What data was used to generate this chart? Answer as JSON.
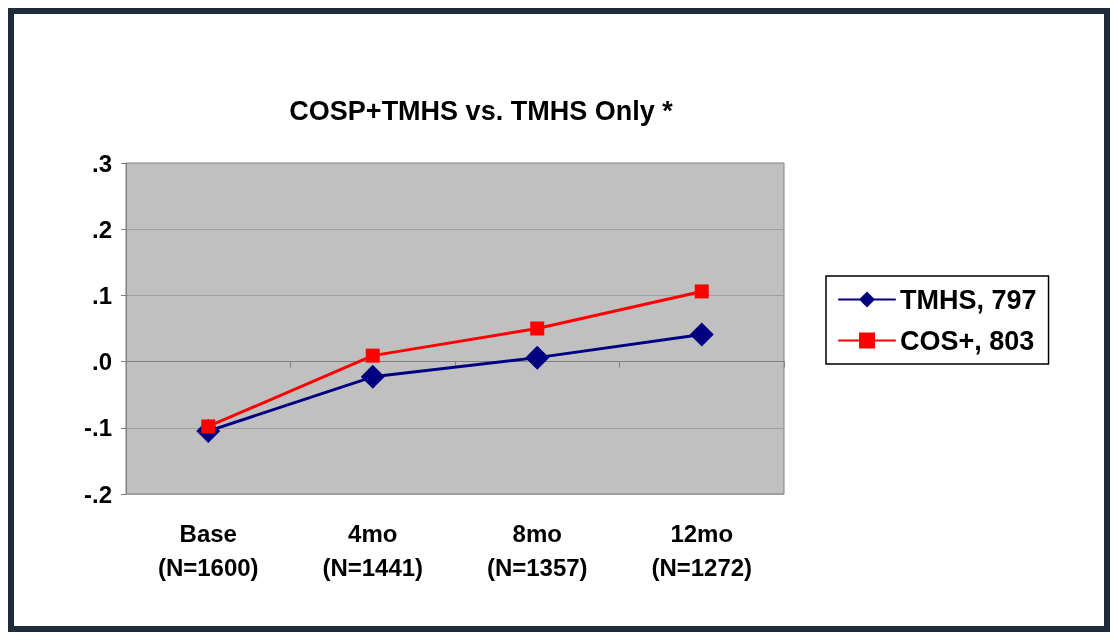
{
  "chart_data": {
    "type": "line",
    "title": "COSP+TMHS vs. TMHS Only *",
    "categories": [
      "Base\n(N=1600)",
      "4mo\n(N=1441)",
      "8mo\n(N=1357)",
      "12mo\n(N=1272)"
    ],
    "series": [
      {
        "name": "TMHS, 797",
        "color": "#000080",
        "marker": "diamond",
        "values": [
          -0.105,
          -0.023,
          0.006,
          0.041
        ]
      },
      {
        "name": "COS+, 803",
        "color": "#ff0000",
        "marker": "square",
        "values": [
          -0.098,
          0.009,
          0.05,
          0.106
        ]
      }
    ],
    "ylim": [
      -0.2,
      0.3
    ],
    "yticks": [
      {
        "value": -0.2,
        "label": "-.2"
      },
      {
        "value": -0.1,
        "label": "-.1"
      },
      {
        "value": 0,
        "label": ".0"
      },
      {
        "value": 0.1,
        "label": ".1"
      },
      {
        "value": 0.2,
        "label": ".2"
      },
      {
        "value": 0.3,
        "label": ".3"
      }
    ],
    "grid": "y",
    "legend": "right",
    "line_style": "solid"
  }
}
